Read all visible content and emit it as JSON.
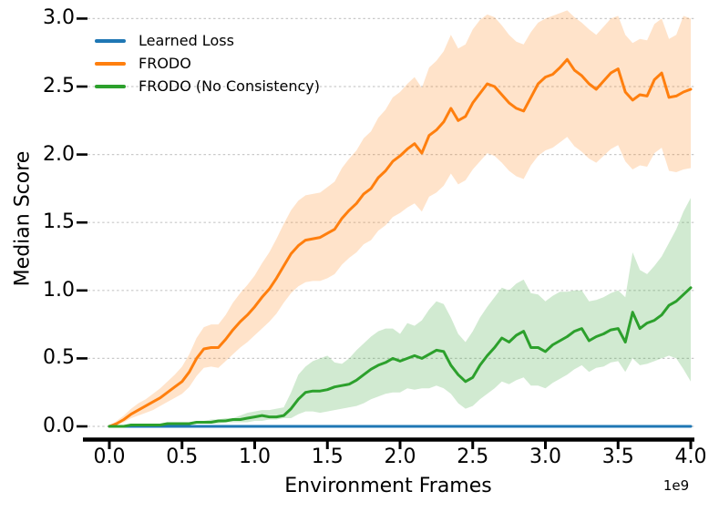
{
  "chart_data": {
    "type": "line",
    "title": "",
    "xlabel": "Environment Frames",
    "ylabel": "Median Score",
    "x_multiplier_label": "1e9",
    "grid": "horizontal-dashed",
    "grid_color": "#c9c9c9",
    "background": "#ffffff",
    "legend": {
      "position": "upper-left",
      "frame": false
    },
    "x_ticks": {
      "values": [
        0,
        0.5,
        1.0,
        1.5,
        2.0,
        2.5,
        3.0,
        3.5,
        4.0
      ],
      "labels": [
        "0.0",
        "0.5",
        "1.0",
        "1.5",
        "2.0",
        "2.5",
        "3.0",
        "3.5",
        "4.0"
      ]
    },
    "y_ticks": {
      "values": [
        0,
        0.5,
        1.0,
        1.5,
        2.0,
        2.5,
        3.0
      ],
      "labels": [
        "0.0",
        "0.5",
        "1.0",
        "1.5",
        "2.0",
        "2.5",
        "3.0"
      ]
    },
    "xlim": [
      -0.18,
      4.02
    ],
    "ylim": [
      -0.1,
      3.08
    ],
    "series": [
      {
        "name": "Learned Loss",
        "color": "#1f77b4",
        "x": [
          0,
          4.0
        ],
        "median": [
          0.0,
          0.0
        ]
      },
      {
        "name": "FRODO",
        "color": "#ff7f0e",
        "band_opacity": 0.22,
        "x_start": 0,
        "x_step": 0.05,
        "median": [
          0.0,
          0.02,
          0.05,
          0.09,
          0.12,
          0.15,
          0.18,
          0.21,
          0.25,
          0.29,
          0.33,
          0.4,
          0.5,
          0.57,
          0.58,
          0.58,
          0.64,
          0.71,
          0.77,
          0.82,
          0.88,
          0.95,
          1.01,
          1.09,
          1.18,
          1.27,
          1.33,
          1.37,
          1.38,
          1.39,
          1.42,
          1.45,
          1.53,
          1.59,
          1.64,
          1.71,
          1.75,
          1.83,
          1.88,
          1.95,
          1.99,
          2.04,
          2.08,
          2.01,
          2.14,
          2.18,
          2.24,
          2.34,
          2.25,
          2.28,
          2.38,
          2.45,
          2.52,
          2.5,
          2.44,
          2.38,
          2.34,
          2.32,
          2.42,
          2.52,
          2.57,
          2.59,
          2.64,
          2.7,
          2.62,
          2.58,
          2.52,
          2.48,
          2.54,
          2.6,
          2.63,
          2.46,
          2.4,
          2.44,
          2.43,
          2.55,
          2.6,
          2.42,
          2.43,
          2.46,
          2.48
        ],
        "lo": [
          0.0,
          0.01,
          0.03,
          0.06,
          0.08,
          0.1,
          0.12,
          0.15,
          0.18,
          0.21,
          0.24,
          0.29,
          0.37,
          0.43,
          0.44,
          0.43,
          0.48,
          0.53,
          0.58,
          0.62,
          0.67,
          0.72,
          0.77,
          0.83,
          0.91,
          0.98,
          1.03,
          1.06,
          1.07,
          1.07,
          1.09,
          1.12,
          1.19,
          1.24,
          1.28,
          1.34,
          1.37,
          1.44,
          1.48,
          1.54,
          1.57,
          1.61,
          1.64,
          1.58,
          1.69,
          1.72,
          1.77,
          1.86,
          1.78,
          1.81,
          1.89,
          1.95,
          2.01,
          1.99,
          1.94,
          1.88,
          1.84,
          1.82,
          1.92,
          1.99,
          2.03,
          2.05,
          2.09,
          2.13,
          2.06,
          2.02,
          1.97,
          1.94,
          1.99,
          2.04,
          2.07,
          1.95,
          1.89,
          1.92,
          1.91,
          2.01,
          2.05,
          1.88,
          1.87,
          1.89,
          1.9
        ],
        "hi": [
          0.0,
          0.04,
          0.08,
          0.13,
          0.17,
          0.2,
          0.24,
          0.28,
          0.33,
          0.38,
          0.44,
          0.53,
          0.65,
          0.73,
          0.75,
          0.75,
          0.82,
          0.91,
          0.98,
          1.04,
          1.11,
          1.2,
          1.28,
          1.38,
          1.49,
          1.59,
          1.66,
          1.7,
          1.71,
          1.72,
          1.76,
          1.8,
          1.9,
          1.97,
          2.03,
          2.12,
          2.17,
          2.27,
          2.33,
          2.42,
          2.46,
          2.52,
          2.57,
          2.49,
          2.64,
          2.69,
          2.76,
          2.88,
          2.78,
          2.81,
          2.92,
          2.99,
          3.03,
          3.01,
          2.95,
          2.88,
          2.83,
          2.81,
          2.9,
          2.97,
          3.0,
          3.02,
          3.04,
          3.06,
          3.01,
          2.97,
          2.92,
          2.88,
          2.94,
          3.0,
          3.02,
          2.88,
          2.82,
          2.85,
          2.84,
          2.96,
          3.0,
          2.85,
          2.88,
          3.02,
          3.0
        ]
      },
      {
        "name": "FRODO (No Consistency)",
        "color": "#2ca02c",
        "band_opacity": 0.22,
        "x_start": 0,
        "x_step": 0.05,
        "median": [
          0.0,
          0.0,
          0.0,
          0.01,
          0.01,
          0.01,
          0.01,
          0.01,
          0.02,
          0.02,
          0.02,
          0.02,
          0.03,
          0.03,
          0.03,
          0.04,
          0.04,
          0.05,
          0.05,
          0.06,
          0.07,
          0.08,
          0.07,
          0.07,
          0.08,
          0.13,
          0.2,
          0.25,
          0.26,
          0.26,
          0.27,
          0.29,
          0.3,
          0.31,
          0.34,
          0.38,
          0.42,
          0.45,
          0.47,
          0.5,
          0.48,
          0.5,
          0.52,
          0.5,
          0.53,
          0.56,
          0.55,
          0.45,
          0.38,
          0.33,
          0.36,
          0.45,
          0.52,
          0.58,
          0.65,
          0.62,
          0.67,
          0.7,
          0.58,
          0.58,
          0.55,
          0.6,
          0.63,
          0.66,
          0.7,
          0.72,
          0.63,
          0.66,
          0.68,
          0.71,
          0.72,
          0.62,
          0.84,
          0.72,
          0.76,
          0.78,
          0.82,
          0.89,
          0.92,
          0.97,
          1.02
        ],
        "lo": [
          0.0,
          0.0,
          0.0,
          0.0,
          0.0,
          0.0,
          0.0,
          0.0,
          0.01,
          0.01,
          0.01,
          0.01,
          0.02,
          0.02,
          0.02,
          0.02,
          0.03,
          0.03,
          0.03,
          0.03,
          0.04,
          0.04,
          0.05,
          0.05,
          0.06,
          0.06,
          0.09,
          0.11,
          0.11,
          0.1,
          0.11,
          0.12,
          0.13,
          0.14,
          0.15,
          0.17,
          0.2,
          0.22,
          0.24,
          0.25,
          0.25,
          0.28,
          0.27,
          0.28,
          0.28,
          0.3,
          0.28,
          0.24,
          0.17,
          0.13,
          0.15,
          0.2,
          0.24,
          0.28,
          0.33,
          0.31,
          0.34,
          0.36,
          0.3,
          0.3,
          0.28,
          0.32,
          0.35,
          0.38,
          0.42,
          0.45,
          0.4,
          0.43,
          0.44,
          0.47,
          0.48,
          0.4,
          0.5,
          0.45,
          0.46,
          0.48,
          0.5,
          0.52,
          0.5,
          0.42,
          0.33
        ],
        "hi": [
          0.01,
          0.01,
          0.01,
          0.02,
          0.02,
          0.02,
          0.02,
          0.02,
          0.03,
          0.03,
          0.03,
          0.03,
          0.04,
          0.04,
          0.05,
          0.05,
          0.06,
          0.06,
          0.08,
          0.1,
          0.11,
          0.12,
          0.12,
          0.13,
          0.14,
          0.25,
          0.38,
          0.44,
          0.48,
          0.5,
          0.52,
          0.47,
          0.46,
          0.5,
          0.56,
          0.61,
          0.66,
          0.7,
          0.72,
          0.72,
          0.68,
          0.76,
          0.74,
          0.78,
          0.86,
          0.92,
          0.9,
          0.8,
          0.68,
          0.62,
          0.7,
          0.8,
          0.88,
          0.95,
          1.02,
          1.0,
          1.05,
          1.08,
          0.98,
          0.97,
          0.92,
          0.96,
          0.99,
          0.99,
          1.0,
          1.0,
          0.92,
          0.93,
          0.95,
          0.98,
          1.0,
          0.95,
          1.28,
          1.15,
          1.12,
          1.18,
          1.25,
          1.35,
          1.45,
          1.58,
          1.68
        ]
      }
    ]
  }
}
